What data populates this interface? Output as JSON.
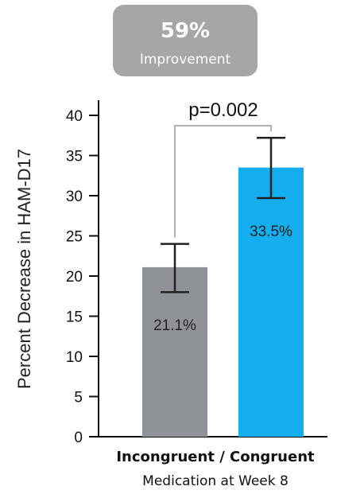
{
  "badge": {
    "percent": "59%",
    "label": "Improvement",
    "color": "#a6a6a6"
  },
  "chart_data": {
    "type": "bar",
    "categories": [
      "Incongruent",
      "Congruent"
    ],
    "values": [
      21.1,
      33.5
    ],
    "error_low": [
      18.0,
      29.7
    ],
    "error_high": [
      24.0,
      37.2
    ],
    "data_labels": [
      "21.1%",
      "33.5%"
    ],
    "bar_colors": [
      "#8f9296",
      "#14aeef"
    ],
    "ylabel": "Percent Decrease in HAM-D17",
    "xlabel_line1": "Incongruent / Congruent",
    "xlabel_line2": "Medication at Week 8",
    "ylim": [
      0,
      40
    ],
    "yticks": [
      0,
      5,
      10,
      15,
      20,
      25,
      30,
      35,
      40
    ],
    "annotation": "p=0.002",
    "grid": false
  }
}
